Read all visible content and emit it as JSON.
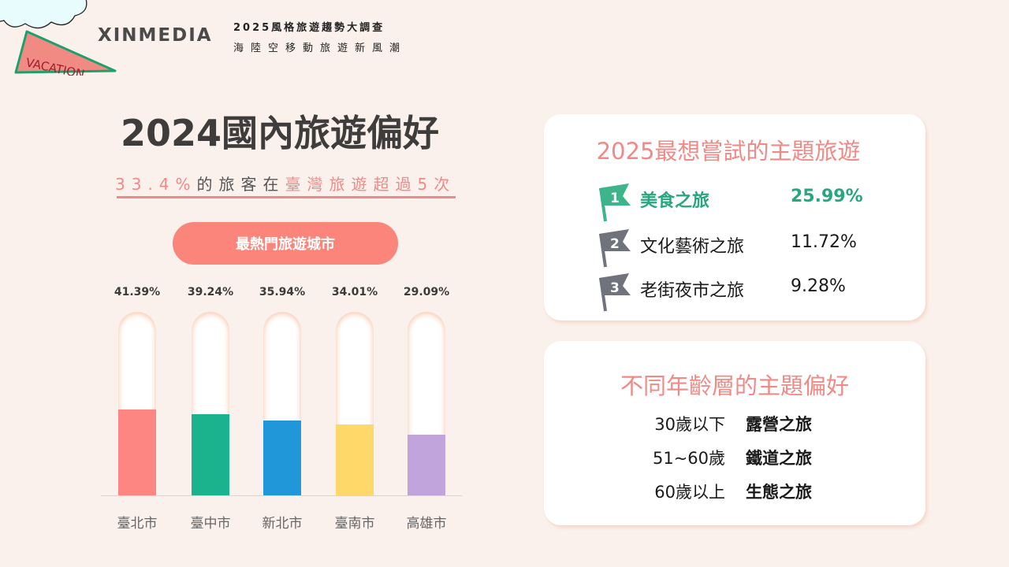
{
  "header": {
    "brand": "XINMEDIA",
    "subtitle_line1": "2025風格旅遊趨勢大調查",
    "subtitle_line2": "海陸空移動旅遊新風潮",
    "pennant_text": "VACATION"
  },
  "left_panel": {
    "title": "2024國內旅遊偏好",
    "tagline": {
      "part1": "33.4%",
      "part2": "的旅客在",
      "part3": "臺灣旅遊超過5次"
    },
    "button_label": "最熱門旅遊城市"
  },
  "chart_data": {
    "type": "bar",
    "title": "最熱門旅遊城市",
    "categories": [
      "臺北市",
      "臺中市",
      "新北市",
      "臺南市",
      "高雄市"
    ],
    "values": [
      41.39,
      39.24,
      35.94,
      34.01,
      29.09
    ],
    "value_labels": [
      "41.39%",
      "39.24%",
      "35.94%",
      "34.01%",
      "29.09%"
    ],
    "colors": [
      "#fe8682",
      "#1ab38d",
      "#1f97d9",
      "#fed96a",
      "#c1a4dc"
    ],
    "xlabel": "",
    "ylabel": "",
    "ylim": [
      0,
      100
    ],
    "grid": false,
    "legend": "none"
  },
  "card_themes": {
    "title": "2025最想嘗試的主題旅遊",
    "items": [
      {
        "rank": "1",
        "label": "美食之旅",
        "pct": "25.99%",
        "flag_color": "#3db48a"
      },
      {
        "rank": "2",
        "label": "文化藝術之旅",
        "pct": "11.72%",
        "flag_color": "#70737c"
      },
      {
        "rank": "3",
        "label": "老街夜市之旅",
        "pct": "9.28%",
        "flag_color": "#70737c"
      }
    ]
  },
  "card_ages": {
    "title": "不同年齡層的主題偏好",
    "items": [
      {
        "age": "30歲以下",
        "theme": "露營之旅"
      },
      {
        "age": "51~60歲",
        "theme": "鐵道之旅"
      },
      {
        "age": "60歲以上",
        "theme": "生態之旅"
      }
    ]
  },
  "colors": {
    "background": "#faf1ec",
    "accent_pink": "#ef8a86",
    "button": "#fb857b",
    "green": "#27a77d"
  }
}
